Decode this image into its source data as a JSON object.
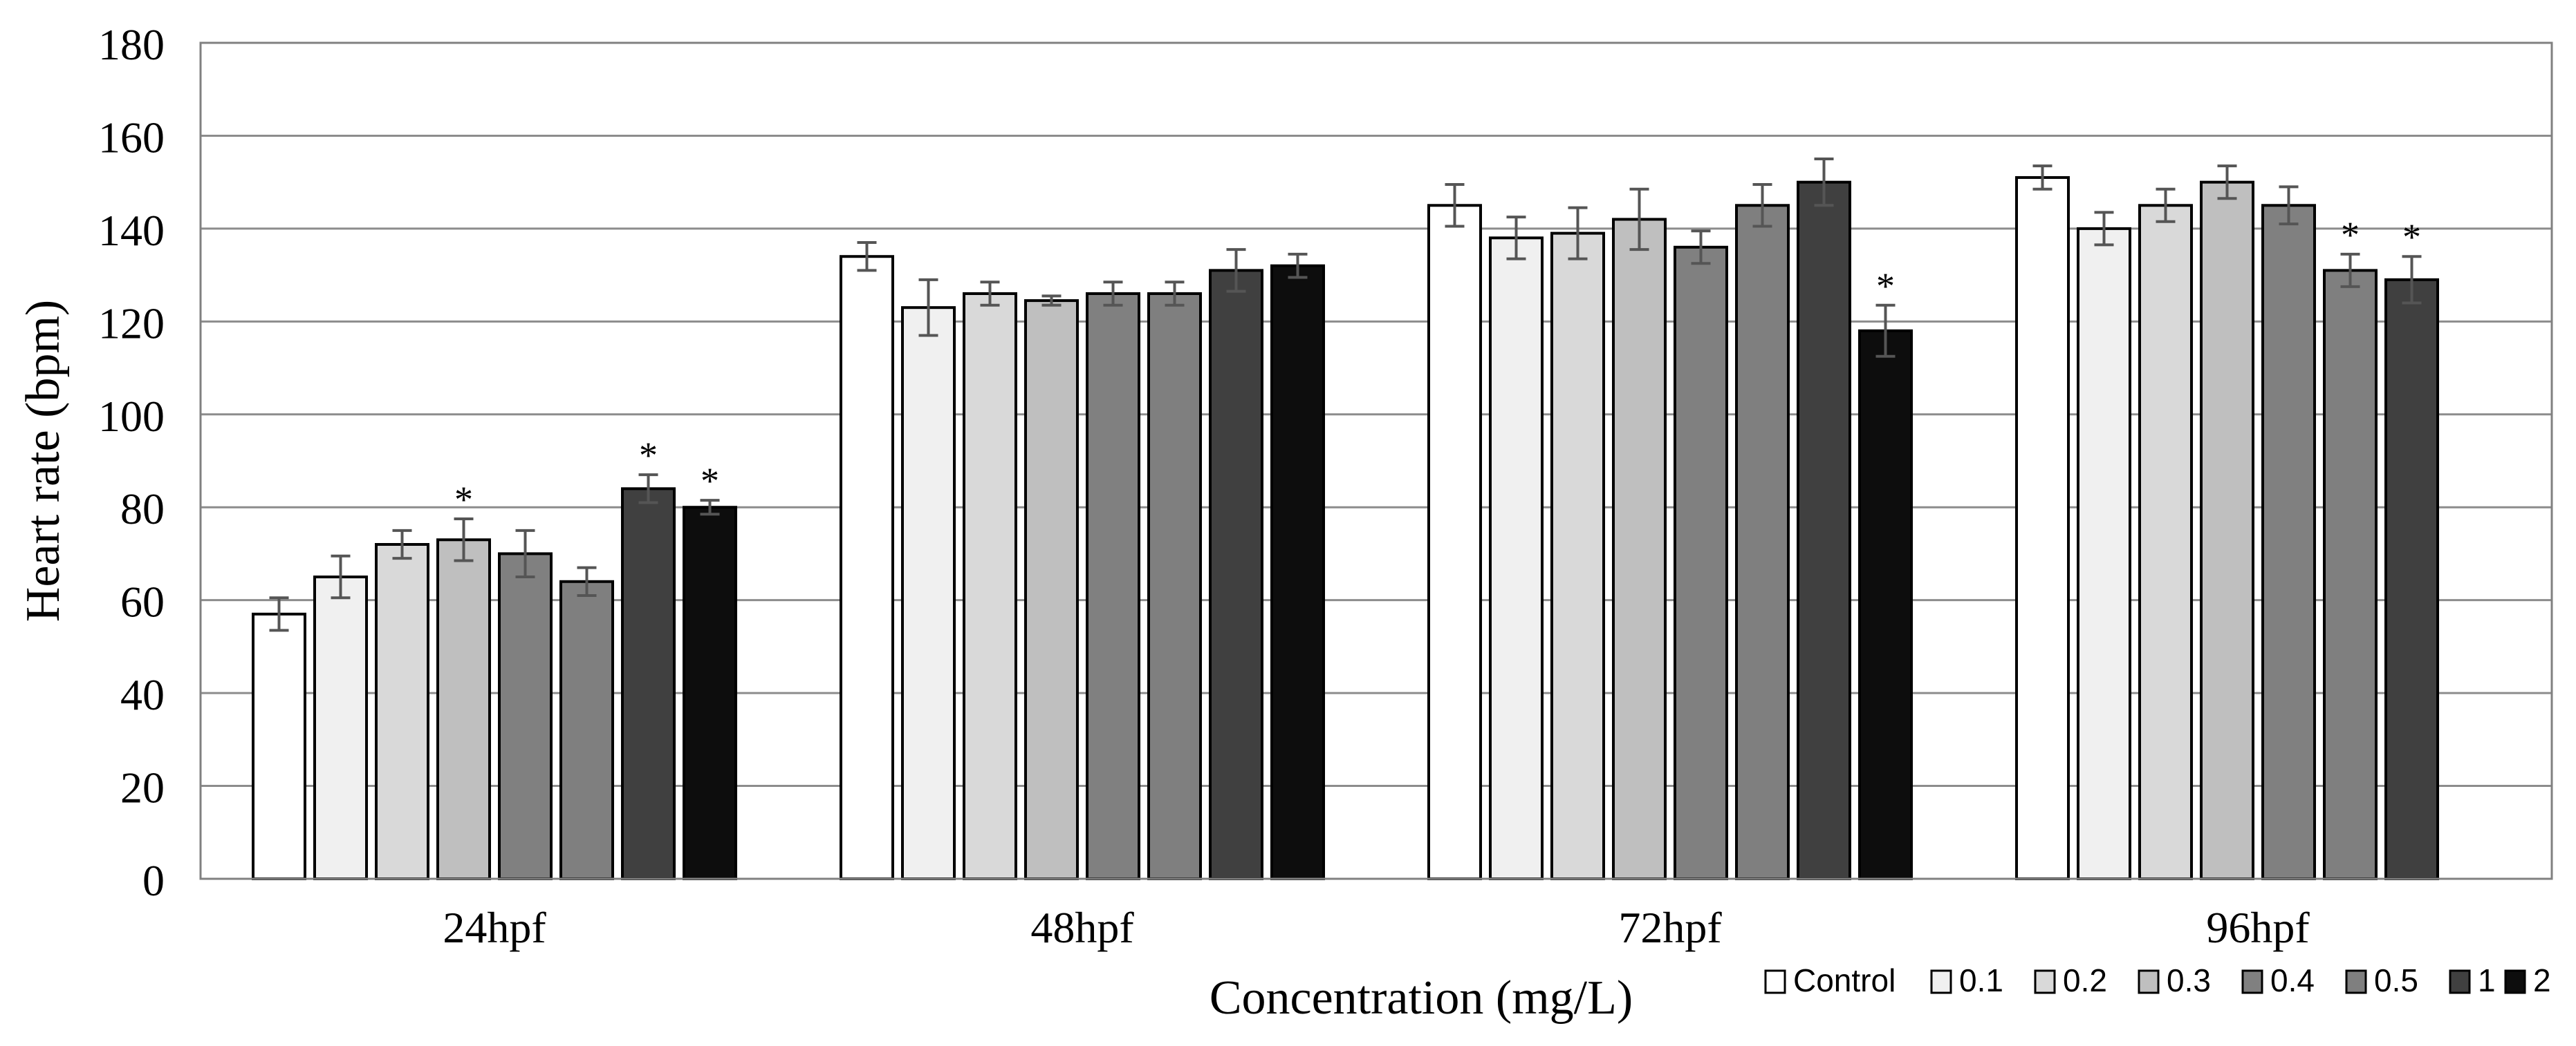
{
  "chart_data": {
    "type": "bar",
    "title": "",
    "xlabel": "Concentration  (mg/L)",
    "ylabel": "Heart rate (bpm)",
    "ylim": [
      0,
      180
    ],
    "yticks": [
      0,
      20,
      40,
      60,
      80,
      100,
      120,
      140,
      160,
      180
    ],
    "grid": true,
    "legend_position": "bottom-right",
    "categories": [
      "24hpf",
      "48hpf",
      "72hpf",
      "96hpf"
    ],
    "series": [
      {
        "name": "Control",
        "color": "#ffffff",
        "values": [
          57,
          134,
          145,
          151
        ],
        "errors": [
          3.5,
          3,
          4.5,
          2.5
        ],
        "significant": [
          false,
          false,
          false,
          false
        ]
      },
      {
        "name": "0.1",
        "color": "#f0f0f0",
        "values": [
          65,
          123,
          138,
          140
        ],
        "errors": [
          4.5,
          6,
          4.5,
          3.5
        ],
        "significant": [
          false,
          false,
          false,
          false
        ]
      },
      {
        "name": "0.2",
        "color": "#d9d9d9",
        "values": [
          72,
          126,
          139,
          145
        ],
        "errors": [
          3,
          2.5,
          5.5,
          3.5
        ],
        "significant": [
          false,
          false,
          false,
          false
        ]
      },
      {
        "name": "0.3",
        "color": "#bfbfbf",
        "values": [
          73,
          124.5,
          142,
          150
        ],
        "errors": [
          4.5,
          1,
          6.5,
          3.5
        ],
        "significant": [
          true,
          false,
          false,
          false
        ]
      },
      {
        "name": "0.4",
        "color": "#808080",
        "values": [
          70,
          126,
          136,
          145
        ],
        "errors": [
          5,
          2.5,
          3.5,
          4
        ],
        "significant": [
          false,
          false,
          false,
          false
        ]
      },
      {
        "name": "0.5",
        "color": "#7f7f7f",
        "values": [
          64,
          126,
          145,
          131
        ],
        "errors": [
          3,
          2.5,
          4.5,
          3.5
        ],
        "significant": [
          false,
          false,
          false,
          true
        ]
      },
      {
        "name": "1",
        "color": "#404040",
        "values": [
          84,
          131,
          150,
          129
        ],
        "errors": [
          3,
          4.5,
          5,
          5
        ],
        "significant": [
          true,
          false,
          false,
          true
        ]
      },
      {
        "name": "2",
        "color": "#0d0d0d",
        "values": [
          80,
          132,
          118,
          null
        ],
        "errors": [
          1.5,
          2.5,
          5.5,
          null
        ],
        "significant": [
          true,
          false,
          true,
          false
        ]
      }
    ],
    "significance_marker": "*"
  }
}
